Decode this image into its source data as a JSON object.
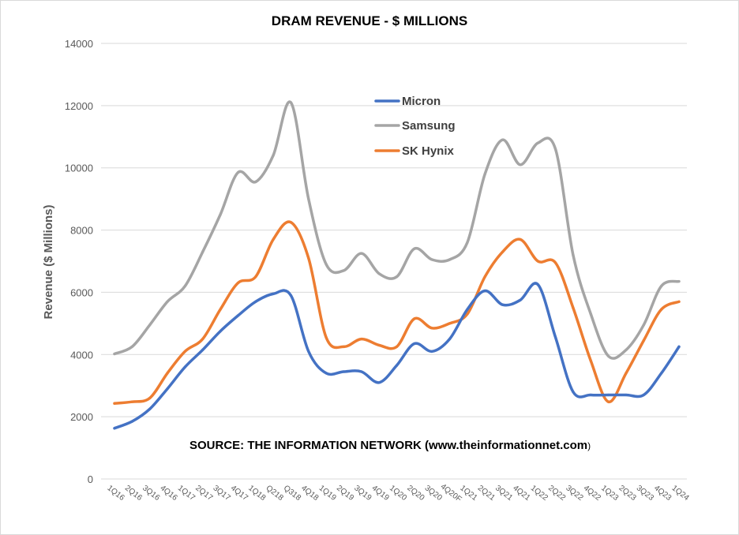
{
  "chart_data": {
    "type": "line",
    "title": "DRAM REVENUE - $ MILLIONS",
    "xlabel": "",
    "ylabel": "Revenue ($ Millions)",
    "ylim": [
      0,
      14000
    ],
    "yticks": [
      0,
      2000,
      4000,
      6000,
      8000,
      10000,
      12000,
      14000
    ],
    "grid": true,
    "legend_position": "top-center",
    "annotation": {
      "bold": "SOURCE: THE INFORMATION NETWORK (www.theinformationnet.com",
      "tail": ")"
    },
    "categories": [
      "1Q16",
      "2Q16",
      "3Q16",
      "4Q16",
      "1Q17",
      "2Q17",
      "3Q17",
      "4Q17",
      "1Q18",
      "Q218",
      "Q318",
      "4Q18",
      "1Q19",
      "2Q19",
      "3Q19",
      "4Q19",
      "1Q20",
      "2Q20",
      "3Q20",
      "4Q20F",
      "1Q21",
      "2Q21",
      "3Q21",
      "4Q21",
      "1Q22",
      "2Q22",
      "3Q22",
      "4Q22",
      "1Q23",
      "2Q23",
      "3Q23",
      "4Q23",
      "1Q24"
    ],
    "series": [
      {
        "name": "Micron",
        "color": "#4472c4",
        "values": [
          1630,
          1850,
          2250,
          2900,
          3600,
          4150,
          4750,
          5250,
          5700,
          5950,
          5900,
          4100,
          3400,
          3450,
          3450,
          3100,
          3650,
          4350,
          4100,
          4500,
          5450,
          6050,
          5600,
          5750,
          6250,
          4550,
          2800,
          2700,
          2700,
          2700,
          2700,
          3400,
          4250
        ]
      },
      {
        "name": "Samsung",
        "color": "#a5a5a5",
        "values": [
          4020,
          4250,
          4950,
          5700,
          6200,
          7300,
          8500,
          9850,
          9550,
          10400,
          12100,
          9000,
          6900,
          6700,
          7250,
          6600,
          6500,
          7400,
          7050,
          7050,
          7600,
          9800,
          10900,
          10100,
          10800,
          10600,
          7200,
          5300,
          3950,
          4150,
          4950,
          6200,
          6350
        ]
      },
      {
        "name": "SK Hynix",
        "color": "#ed7d31",
        "values": [
          2430,
          2480,
          2600,
          3400,
          4100,
          4500,
          5450,
          6300,
          6500,
          7700,
          8250,
          7100,
          4550,
          4250,
          4500,
          4300,
          4250,
          5150,
          4850,
          5000,
          5300,
          6500,
          7300,
          7700,
          7000,
          6950,
          5500,
          3800,
          2480,
          3400,
          4450,
          5450,
          5700
        ]
      }
    ]
  }
}
